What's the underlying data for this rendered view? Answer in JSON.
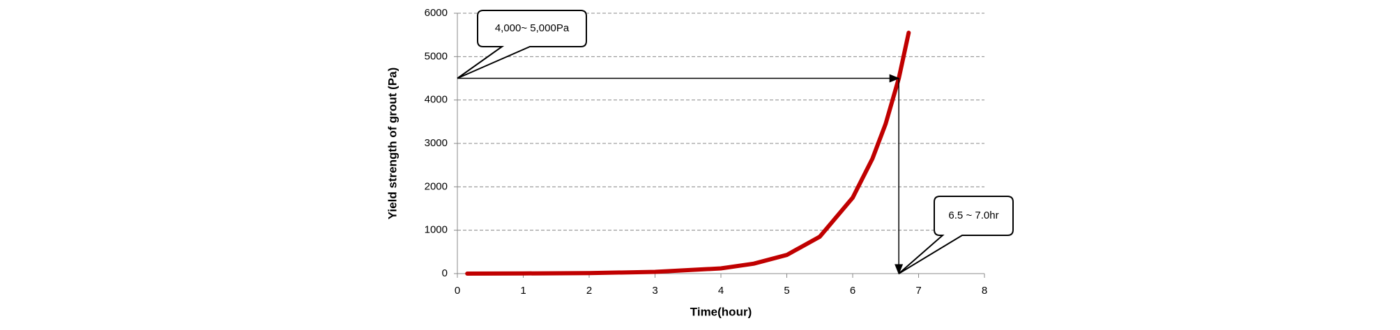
{
  "chart_data": {
    "type": "line",
    "xlabel": "Time(hour)",
    "ylabel": "Yield strength of grout (Pa)",
    "x": [
      0.15,
      1,
      2,
      3,
      4,
      4.5,
      5,
      5.5,
      6,
      6.3,
      6.5,
      6.7,
      6.85
    ],
    "values": [
      1,
      4,
      12,
      40,
      120,
      230,
      430,
      850,
      1750,
      2650,
      3450,
      4500,
      5550
    ],
    "color": "#c00000",
    "xlim": [
      0,
      8
    ],
    "xticks": [
      0,
      1,
      2,
      3,
      4,
      5,
      6,
      7,
      8
    ],
    "ylim": [
      0,
      6000
    ],
    "yticks": [
      0,
      1000,
      2000,
      3000,
      4000,
      5000,
      6000
    ],
    "grid": true,
    "guide": {
      "x": 6.7,
      "y": 4500
    },
    "annotations": [
      {
        "text": "4,000~ 5,000Pa",
        "x": 0,
        "y": 4500
      },
      {
        "text": "6.5 ~ 7.0hr",
        "x": 6.7,
        "y": 0
      }
    ]
  }
}
